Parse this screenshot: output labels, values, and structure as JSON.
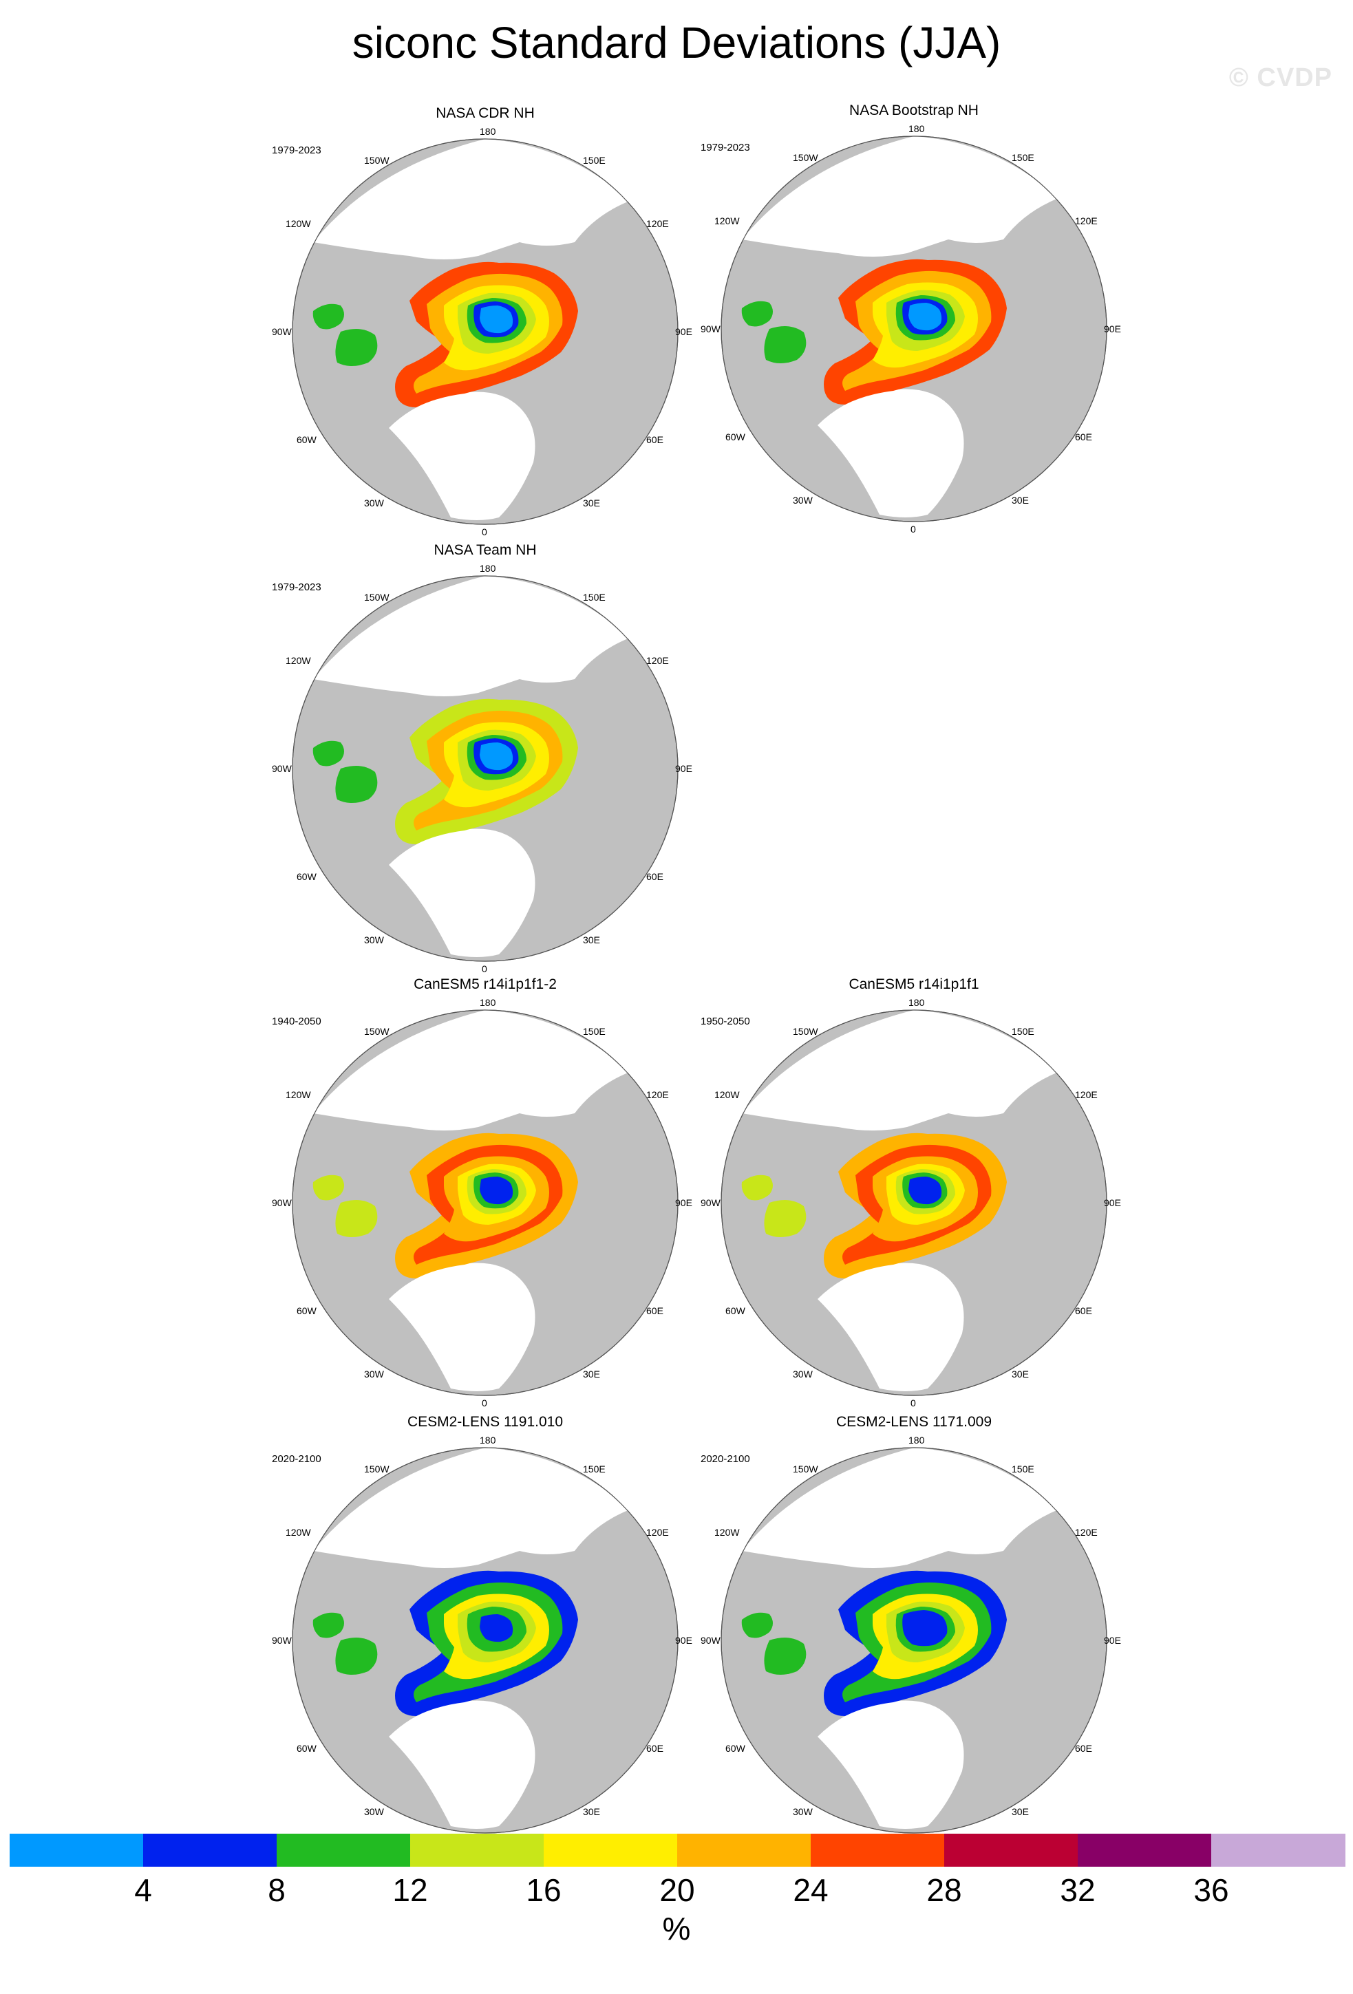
{
  "title": "siconc Standard Deviations (JJA)",
  "watermark": "© CVDP",
  "lon_labels": {
    "l180": "180",
    "l150e": "150E",
    "l120e": "120E",
    "l90e": "90E",
    "l60e": "60E",
    "l30e": "30E",
    "l0": "0",
    "l30w": "30W",
    "l60w": "60W",
    "l90w": "90W",
    "l120w": "120W",
    "l150w": "150W"
  },
  "panels": [
    {
      "title": "NASA CDR NH",
      "years": "1979-2023",
      "colors": {
        "core": "#0099ff",
        "ring1": "#0022ee",
        "ring2": "#22bb22",
        "ring3": "#c8e619",
        "ring4": "#ffee00",
        "ring5": "#ffb300",
        "ring6": "#ff4400"
      }
    },
    {
      "title": "NASA Bootstrap NH",
      "years": "1979-2023",
      "colors": {
        "core": "#0099ff",
        "ring1": "#0022ee",
        "ring2": "#22bb22",
        "ring3": "#c8e619",
        "ring4": "#ffee00",
        "ring5": "#ffb300",
        "ring6": "#ff4400"
      }
    },
    {
      "title": "NASA Team NH",
      "years": "1979-2023",
      "colors": {
        "core": "#0099ff",
        "ring1": "#0022ee",
        "ring2": "#22bb22",
        "ring3": "#c8e619",
        "ring4": "#ffee00",
        "ring5": "#ffb300",
        "ring6": "#c8e619"
      }
    },
    {
      "title": "CanESM5 r14i1p1f1-2",
      "years": "1940-2050",
      "colors": {
        "core": "#0022ee",
        "ring1": "#22bb22",
        "ring2": "#c8e619",
        "ring3": "#ffee00",
        "ring4": "#ffb300",
        "ring5": "#ff4400",
        "ring6": "#ffb300"
      }
    },
    {
      "title": "CanESM5 r14i1p1f1",
      "years": "1950-2050",
      "colors": {
        "core": "#0022ee",
        "ring1": "#22bb22",
        "ring2": "#c8e619",
        "ring3": "#ffee00",
        "ring4": "#ffb300",
        "ring5": "#ff4400",
        "ring6": "#ffb300"
      }
    },
    {
      "title": "CESM2-LENS 1191.010",
      "years": "2020-2100",
      "colors": {
        "core": "#0022ee",
        "ring1": "#22bb22",
        "ring2": "#22bb22",
        "ring3": "#c8e619",
        "ring4": "#ffee00",
        "ring5": "#22bb22",
        "ring6": "#0022ee"
      }
    },
    {
      "title": "CESM2-LENS 1171.009",
      "years": "2020-2100",
      "colors": {
        "core": "#0022ee",
        "ring1": "#0022ee",
        "ring2": "#22bb22",
        "ring3": "#c8e619",
        "ring4": "#ffee00",
        "ring5": "#22bb22",
        "ring6": "#0022ee"
      }
    }
  ],
  "colorbar": {
    "colors": [
      "#0099ff",
      "#0022ee",
      "#22bb22",
      "#c8e619",
      "#ffee00",
      "#ffb300",
      "#ff4400",
      "#bb0033",
      "#880066",
      "#c8a8d8"
    ],
    "ticks": [
      "4",
      "8",
      "12",
      "16",
      "20",
      "24",
      "28",
      "32",
      "36"
    ],
    "units": "%"
  }
}
